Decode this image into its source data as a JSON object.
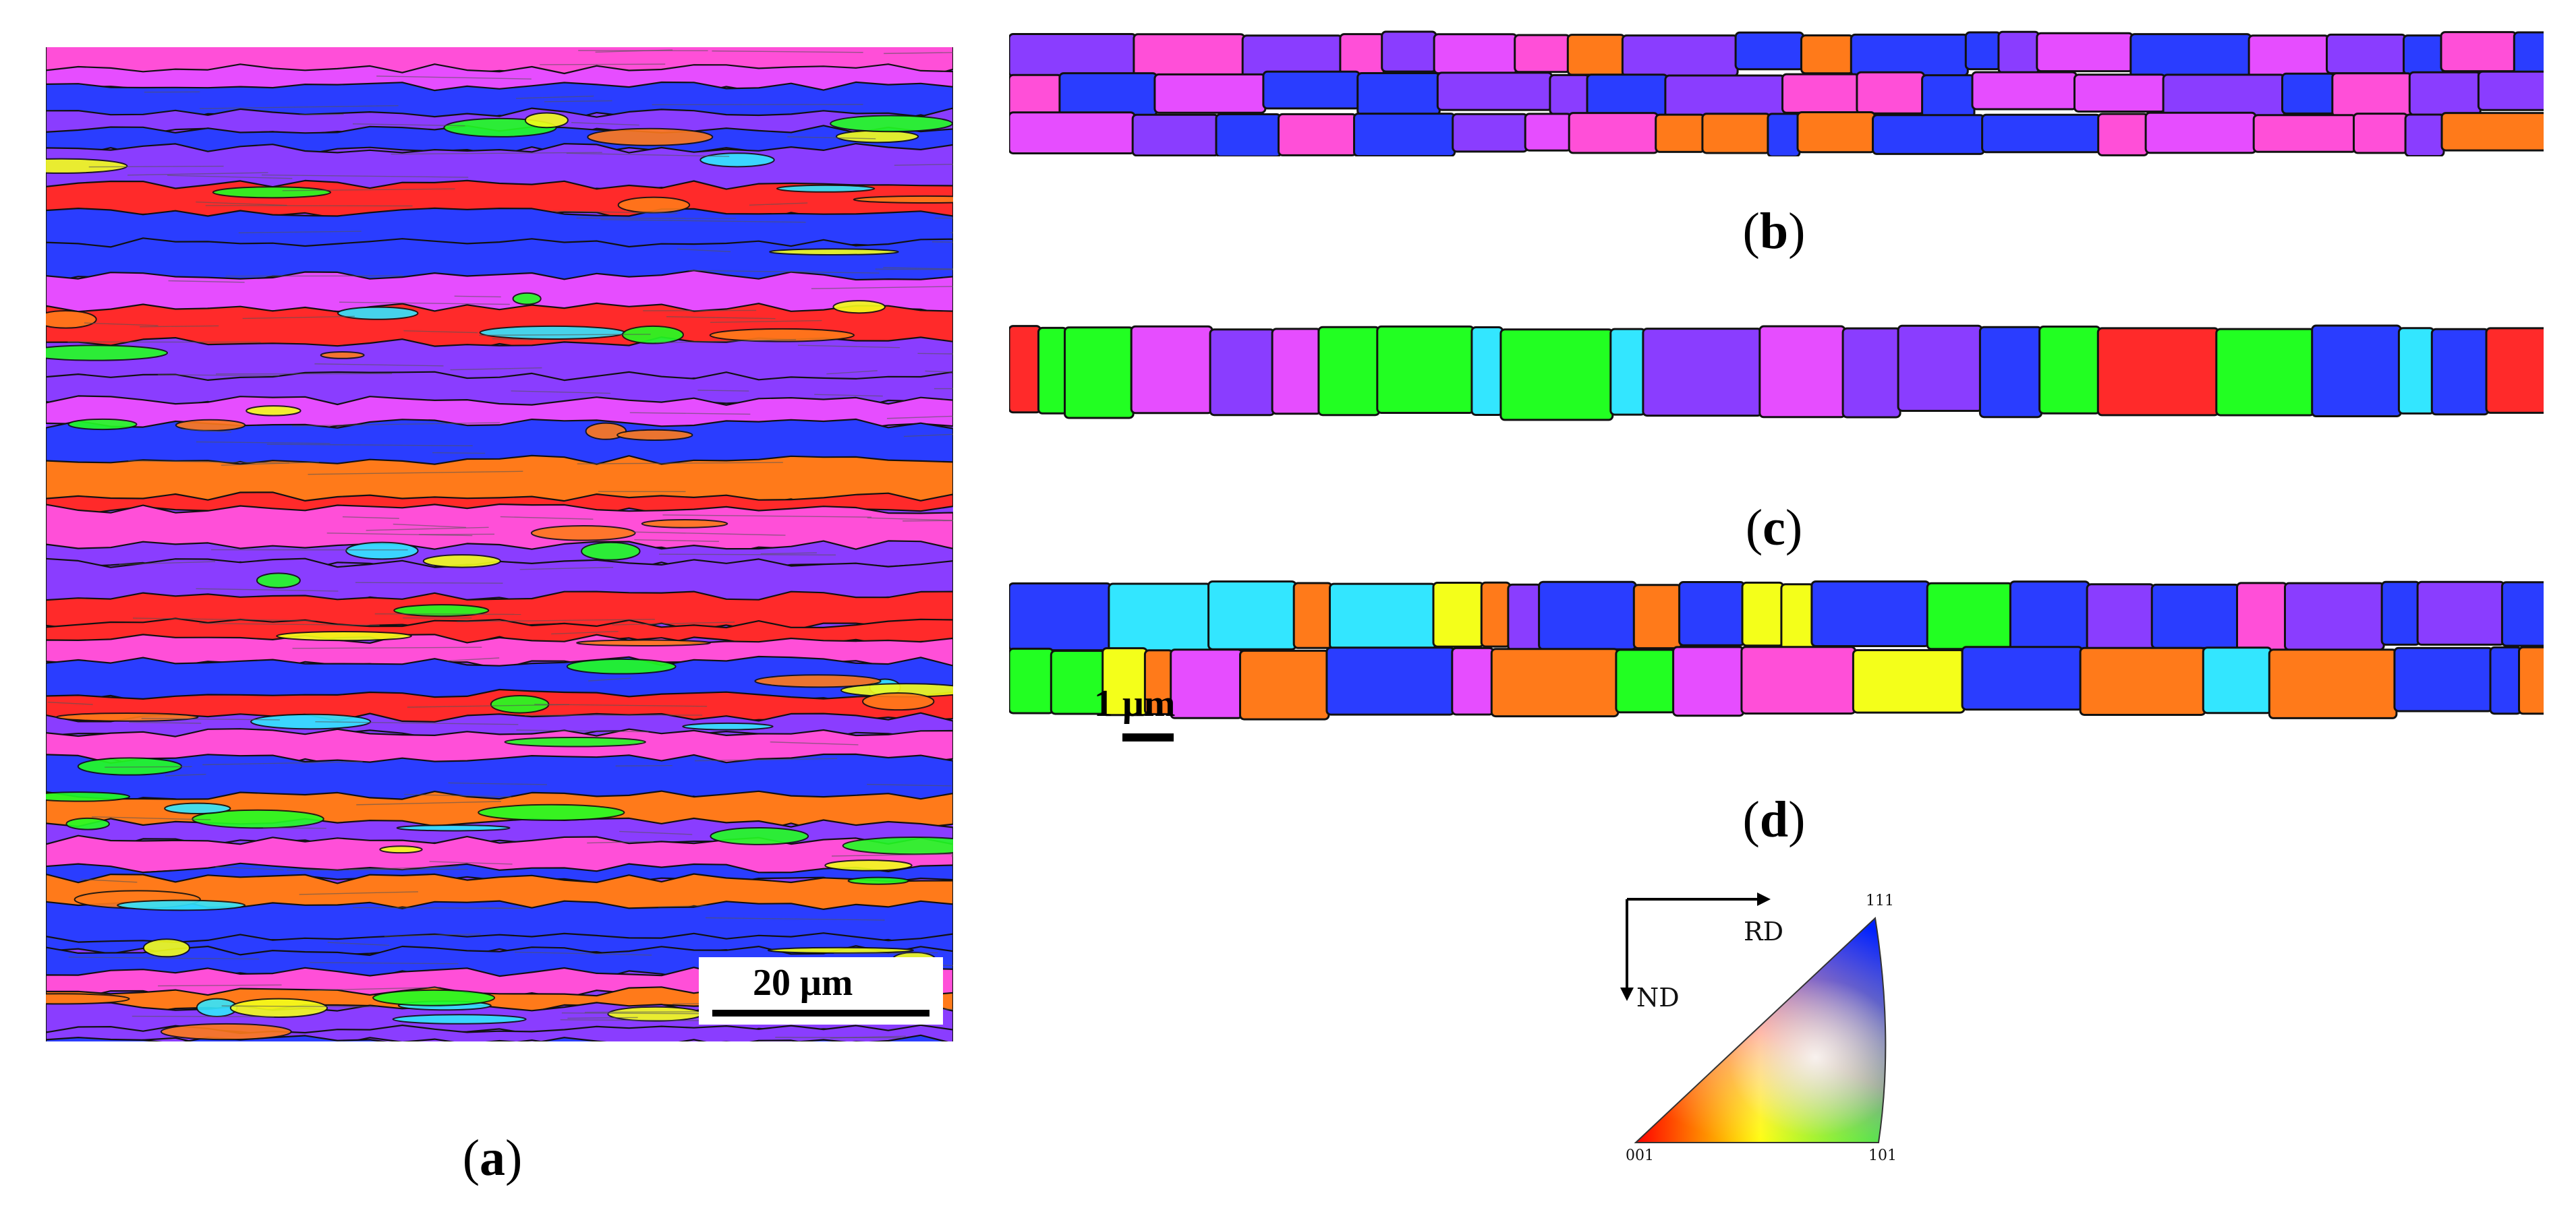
{
  "figure": {
    "panels": [
      {
        "id": "a",
        "caption_open": "(",
        "caption_letter": "a",
        "caption_close": ")"
      },
      {
        "id": "b",
        "caption_open": "(",
        "caption_letter": "b",
        "caption_close": ")"
      },
      {
        "id": "c",
        "caption_open": "(",
        "caption_letter": "c",
        "caption_close": ")"
      },
      {
        "id": "d",
        "caption_open": "(",
        "caption_letter": "d",
        "caption_close": ")"
      }
    ],
    "scale_bars": {
      "a": "20 μm",
      "d": "1 μm"
    },
    "ipf_legend": {
      "axis_rd": "RD",
      "axis_nd": "ND",
      "corner_001": "001",
      "corner_101": "101",
      "corner_111": "111"
    },
    "colors": {
      "red": "#ff2a2a",
      "magenta": "#e64dff",
      "pink": "#ff4fd8",
      "purple": "#8a3dff",
      "blue": "#2a3dff",
      "green": "#22ff22",
      "yellow": "#f4ff1a",
      "cyan": "#33e6ff",
      "orange": "#ff7a1a",
      "boundary": "#111111"
    }
  }
}
